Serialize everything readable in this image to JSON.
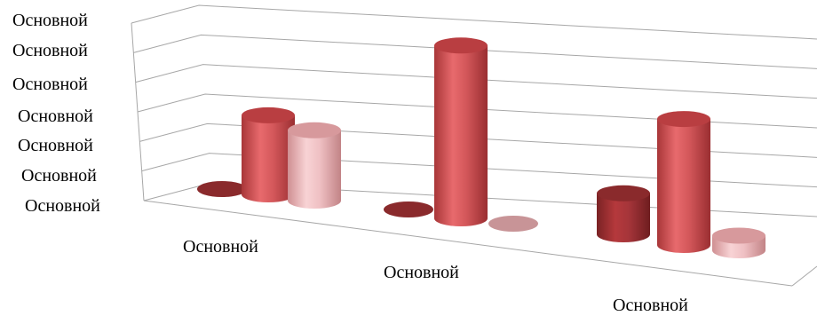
{
  "chart_data": {
    "type": "bar",
    "style": "3d-cylinder",
    "title": "",
    "xlabel": "",
    "ylabel": "",
    "ylim": [
      0,
      6
    ],
    "grid": true,
    "legend": "none",
    "y_tick_labels": [
      "Основной",
      "Основной",
      "Основной",
      "Основной",
      "Основной",
      "Основной",
      "Основной"
    ],
    "categories": [
      "Основной",
      "Основной",
      "Основной"
    ],
    "series": [
      {
        "values": [
          0,
          0,
          1.4
        ],
        "color": "#9b2f31"
      },
      {
        "values": [
          2.7,
          5.9,
          4.3
        ],
        "color": "#c9474b"
      },
      {
        "values": [
          2.4,
          0,
          0.5
        ],
        "color": "#e7a7aa"
      }
    ]
  }
}
